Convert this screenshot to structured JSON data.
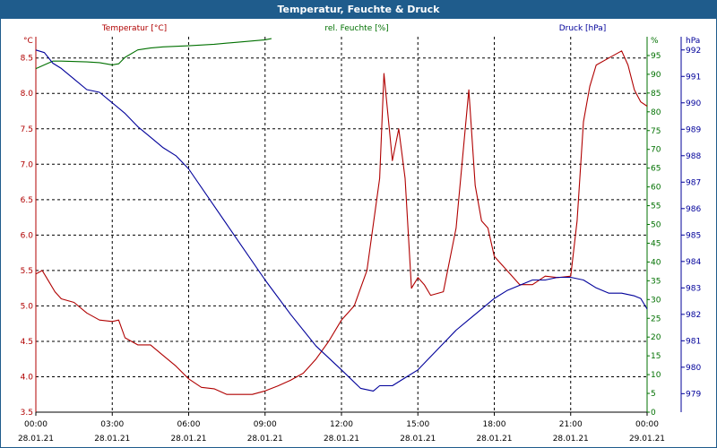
{
  "window": {
    "title": "Temperatur, Feuchte & Druck"
  },
  "chart_data": {
    "type": "line",
    "title": "Temperatur, Feuchte & Druck",
    "grid": true,
    "colors": {
      "temperature": "#b00000",
      "humidity": "#007000",
      "pressure": "#00009a",
      "titlebar": "#1f5c8c"
    },
    "x_ticks": [
      {
        "time": "00:00",
        "date": "28.01.21"
      },
      {
        "time": "03:00",
        "date": "28.01.21"
      },
      {
        "time": "06:00",
        "date": "28.01.21"
      },
      {
        "time": "09:00",
        "date": "28.01.21"
      },
      {
        "time": "12:00",
        "date": "28.01.21"
      },
      {
        "time": "15:00",
        "date": "28.01.21"
      },
      {
        "time": "18:00",
        "date": "28.01.21"
      },
      {
        "time": "21:00",
        "date": "28.01.21"
      },
      {
        "time": "00:00",
        "date": "29.01.21"
      }
    ],
    "xlim": [
      "28.01.21 00:00",
      "29.01.21 00:00"
    ],
    "axes": {
      "temperature": {
        "label": "Temperatur [°C]",
        "unit": "°C",
        "ylim": [
          3.5,
          8.8
        ],
        "ticks": [
          "3.5",
          "4.0",
          "4.5",
          "5.0",
          "5.5",
          "6.0",
          "6.5",
          "7.0",
          "7.5",
          "8.0",
          "8.5"
        ]
      },
      "humidity": {
        "label": "rel. Feuchte [%]",
        "unit": "%",
        "ylim": [
          0,
          100
        ],
        "ticks": [
          "0",
          "5",
          "10",
          "15",
          "20",
          "25",
          "30",
          "35",
          "40",
          "45",
          "50",
          "55",
          "60",
          "65",
          "70",
          "75",
          "80",
          "85",
          "90",
          "95"
        ]
      },
      "pressure": {
        "label": "Druck [hPa]",
        "unit": "hPa",
        "ylim": [
          978.3,
          992.5
        ],
        "ticks": [
          "979",
          "980",
          "981",
          "982",
          "983",
          "984",
          "985",
          "986",
          "987",
          "988",
          "989",
          "990",
          "991",
          "992"
        ]
      }
    },
    "series": [
      {
        "name": "Temperatur [°C]",
        "axis": "temperature",
        "x": [
          "00:00",
          "00:15",
          "00:30",
          "00:45",
          "01:00",
          "01:30",
          "02:00",
          "02:30",
          "03:00",
          "03:15",
          "03:30",
          "04:00",
          "04:30",
          "05:00",
          "05:30",
          "06:00",
          "06:30",
          "07:00",
          "07:30",
          "08:00",
          "08:30",
          "09:00",
          "09:30",
          "10:00",
          "10:30",
          "11:00",
          "11:30",
          "12:00",
          "12:30",
          "13:00",
          "13:30",
          "13:40",
          "14:00",
          "14:15",
          "14:30",
          "14:45",
          "15:00",
          "15:15",
          "15:30",
          "16:00",
          "16:30",
          "17:00",
          "17:15",
          "17:30",
          "17:45",
          "18:00",
          "18:30",
          "19:00",
          "19:30",
          "20:00",
          "20:30",
          "21:00",
          "21:15",
          "21:30",
          "21:45",
          "22:00",
          "22:30",
          "23:00",
          "23:15",
          "23:30",
          "23:45",
          "24:00"
        ],
        "y": [
          5.45,
          5.5,
          5.35,
          5.2,
          5.1,
          5.05,
          4.9,
          4.8,
          4.78,
          4.8,
          4.55,
          4.45,
          4.45,
          4.3,
          4.15,
          3.97,
          3.85,
          3.83,
          3.75,
          3.75,
          3.75,
          3.8,
          3.87,
          3.95,
          4.05,
          4.25,
          4.5,
          4.8,
          5.0,
          5.5,
          6.8,
          8.28,
          7.05,
          7.5,
          6.8,
          5.25,
          5.4,
          5.3,
          5.15,
          5.2,
          6.1,
          8.05,
          6.7,
          6.2,
          6.1,
          5.7,
          5.5,
          5.3,
          5.3,
          5.42,
          5.4,
          5.42,
          6.2,
          7.6,
          8.1,
          8.4,
          8.5,
          8.6,
          8.4,
          8.05,
          7.88,
          7.82
        ]
      },
      {
        "name": "rel. Feuchte [%]",
        "axis": "humidity",
        "x": [
          "00:00",
          "00:20",
          "00:40",
          "01:00",
          "02:00",
          "02:30",
          "03:00",
          "03:15",
          "03:30",
          "04:00",
          "04:30",
          "05:00",
          "06:00",
          "07:00",
          "08:00",
          "09:00",
          "09:15"
        ],
        "y": [
          91.5,
          92.5,
          93.5,
          93.5,
          93.3,
          93.1,
          92.5,
          92.8,
          94.5,
          96.5,
          97,
          97.3,
          97.6,
          98,
          98.6,
          99.2,
          99.5
        ]
      },
      {
        "name": "Druck [hPa]",
        "axis": "pressure",
        "x": [
          "00:00",
          "00:20",
          "00:40",
          "01:00",
          "01:30",
          "02:00",
          "02:30",
          "03:00",
          "03:30",
          "04:00",
          "04:30",
          "05:00",
          "05:30",
          "06:00",
          "07:00",
          "08:00",
          "09:00",
          "10:00",
          "11:00",
          "12:00",
          "12:45",
          "13:15",
          "13:30",
          "14:00",
          "14:30",
          "15:00",
          "15:30",
          "16:00",
          "16:30",
          "17:00",
          "17:30",
          "18:00",
          "18:30",
          "19:00",
          "19:30",
          "20:00",
          "20:30",
          "21:00",
          "21:30",
          "22:00",
          "22:30",
          "23:00",
          "23:30",
          "23:45",
          "24:00"
        ],
        "y": [
          992,
          991.9,
          991.5,
          991.3,
          990.9,
          990.5,
          990.4,
          990,
          989.6,
          989.1,
          988.7,
          988.3,
          988,
          987.5,
          986.1,
          984.7,
          983.3,
          982,
          980.8,
          979.9,
          979.2,
          979.1,
          979.3,
          979.3,
          979.6,
          979.9,
          980.4,
          980.9,
          981.4,
          981.8,
          982.2,
          982.6,
          982.9,
          983.1,
          983.3,
          983.3,
          983.4,
          983.4,
          983.3,
          983.0,
          982.8,
          982.8,
          982.7,
          982.6,
          982.2
        ]
      }
    ]
  }
}
